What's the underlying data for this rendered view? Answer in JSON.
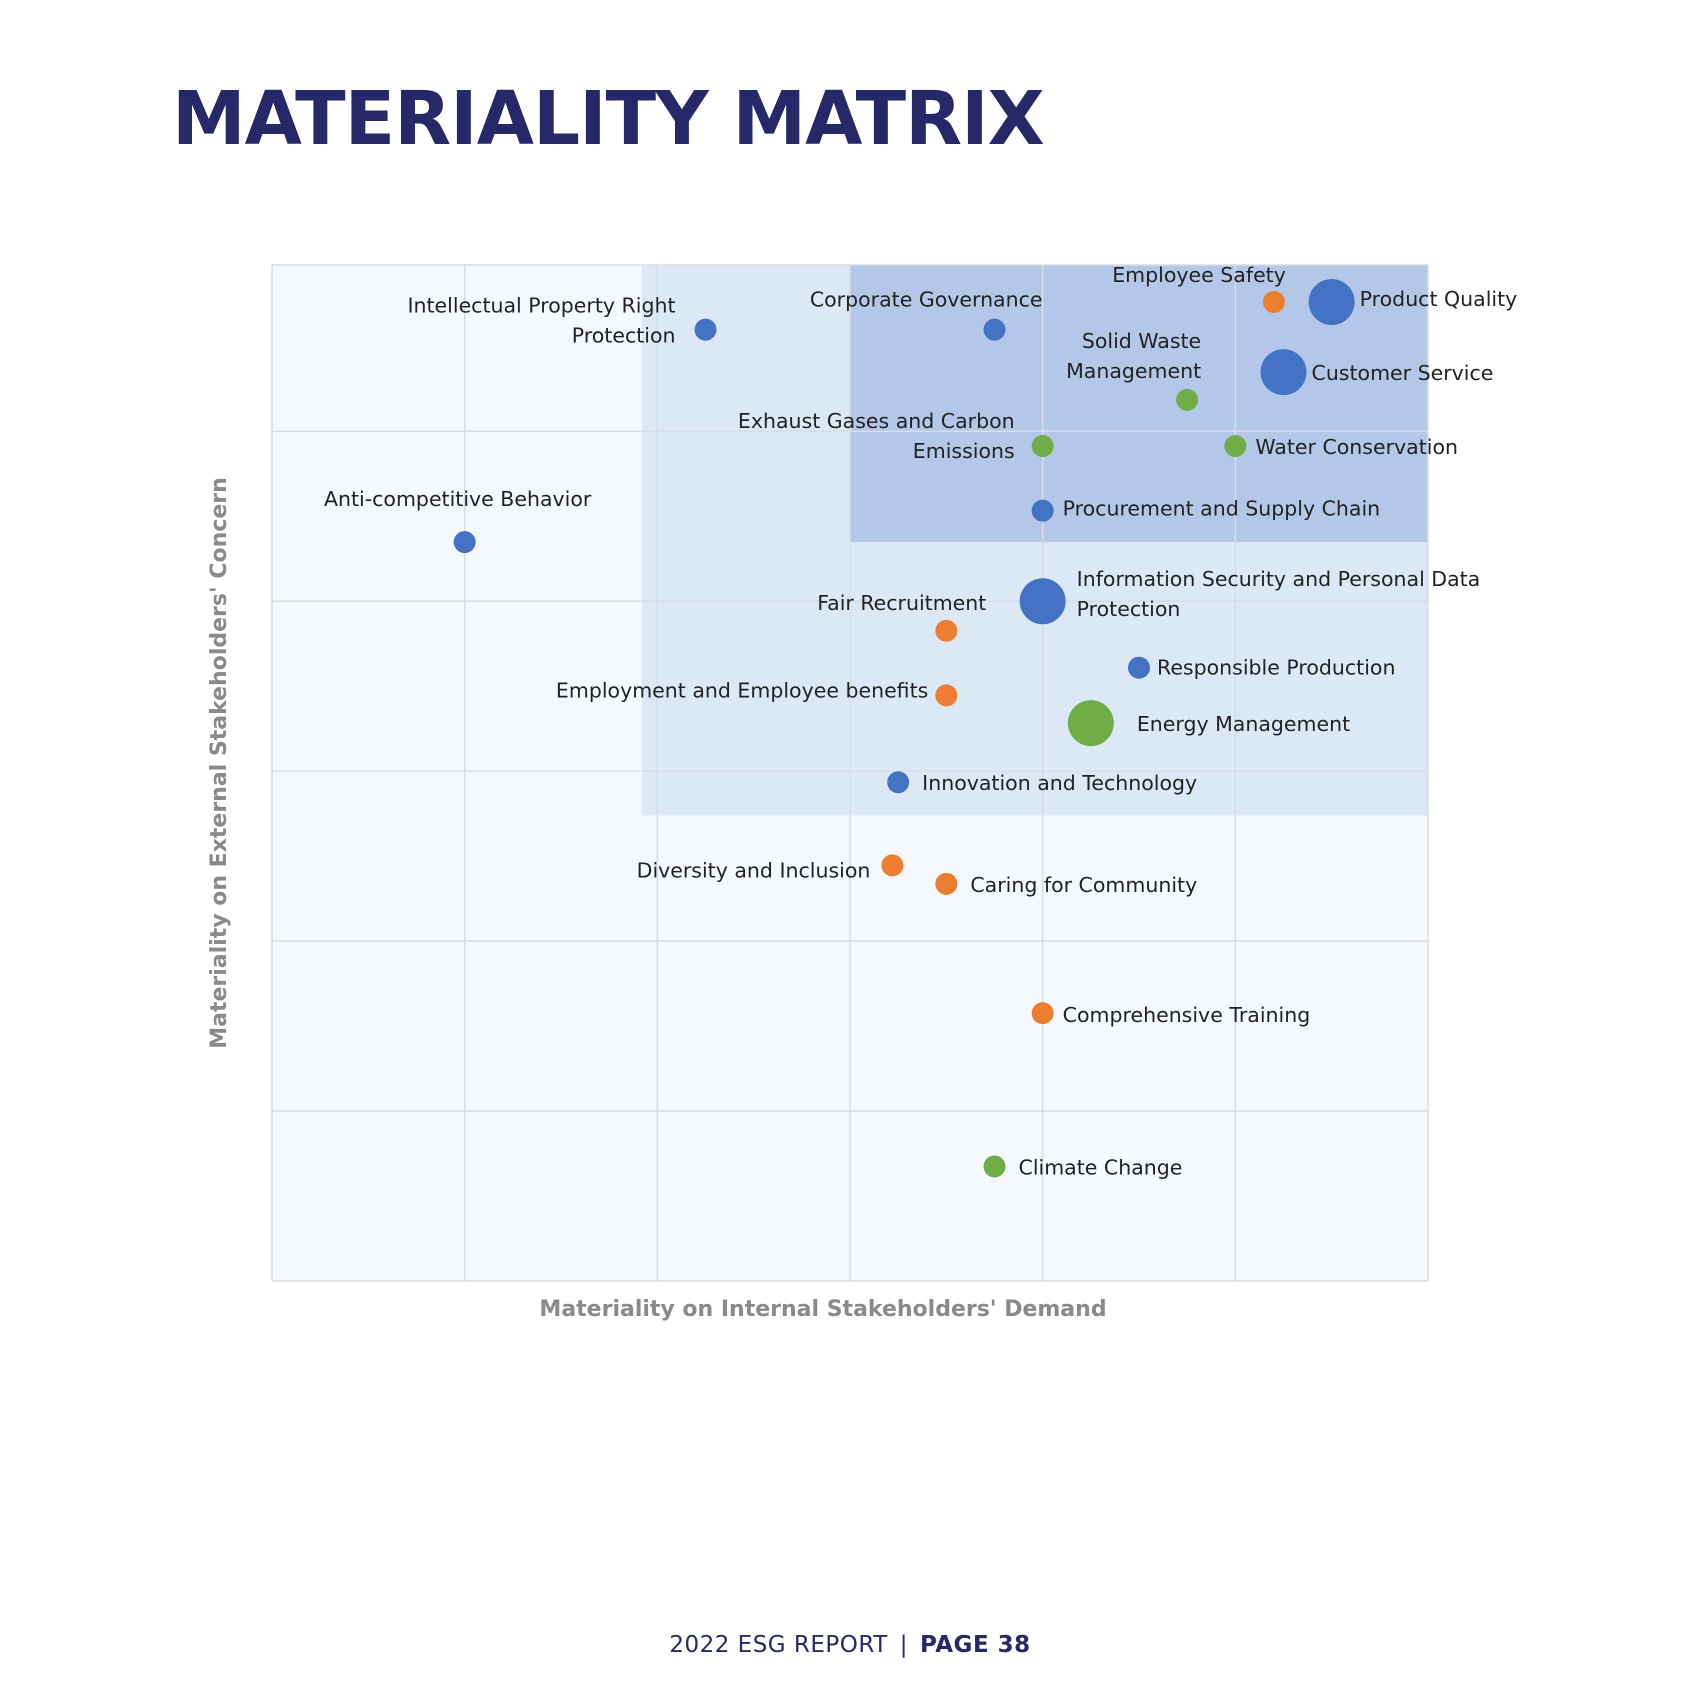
{
  "page": {
    "title": "MATERIALITY MATRIX"
  },
  "footer": {
    "report": "2022 ESG REPORT",
    "separator": "|",
    "page": "PAGE 38"
  },
  "colors": {
    "governance": "#4472c4",
    "social": "#ed7d31",
    "environment": "#70ad47",
    "region_light": "#dce8f6",
    "region_dark": "#b3c8e8",
    "plot_bg": "#f5f8fc",
    "grid": "#d8dde4"
  },
  "chart_data": {
    "type": "scatter",
    "title": "MATERIALITY MATRIX",
    "xlabel": "Materiality on Internal Stakeholders' Demand",
    "ylabel": "Materiality on External Stakeholders' Concern",
    "xlim": [
      0,
      6
    ],
    "ylim": [
      0,
      5.5
    ],
    "grid": true,
    "regions": [
      {
        "name": "moderate",
        "x": [
          1.92,
          6
        ],
        "y": [
          2.52,
          5.5
        ]
      },
      {
        "name": "high",
        "x": [
          3.0,
          6
        ],
        "y": [
          4.0,
          5.5
        ]
      }
    ],
    "points": [
      {
        "label": "Employee Safety",
        "x": 5.2,
        "y": 5.3,
        "size": "small",
        "category": "social"
      },
      {
        "label": "Product Quality",
        "x": 5.5,
        "y": 5.3,
        "size": "large",
        "category": "governance"
      },
      {
        "label": "Corporate Governance",
        "x": 3.75,
        "y": 5.15,
        "size": "small",
        "category": "governance"
      },
      {
        "label": "Intellectual Property Right Protection",
        "x": 2.25,
        "y": 5.15,
        "size": "small",
        "category": "governance"
      },
      {
        "label": "Customer Service",
        "x": 5.25,
        "y": 4.92,
        "size": "large",
        "category": "governance"
      },
      {
        "label": "Solid Waste Management",
        "x": 4.75,
        "y": 4.77,
        "size": "small",
        "category": "environment"
      },
      {
        "label": "Exhaust Gases and Carbon Emissions",
        "x": 4.0,
        "y": 4.52,
        "size": "small",
        "category": "environment"
      },
      {
        "label": "Water Conservation",
        "x": 5.0,
        "y": 4.52,
        "size": "small",
        "category": "environment"
      },
      {
        "label": "Procurement and Supply Chain",
        "x": 4.0,
        "y": 4.17,
        "size": "small",
        "category": "governance"
      },
      {
        "label": "Anti-competitive Behavior",
        "x": 1.0,
        "y": 4.0,
        "size": "small",
        "category": "governance"
      },
      {
        "label": "Information Security and Personal Data Protection",
        "x": 4.0,
        "y": 3.68,
        "size": "large",
        "category": "governance"
      },
      {
        "label": "Fair Recruitment",
        "x": 3.5,
        "y": 3.52,
        "size": "small",
        "category": "social"
      },
      {
        "label": "Responsible Production",
        "x": 4.5,
        "y": 3.32,
        "size": "small",
        "category": "governance"
      },
      {
        "label": "Employment and Employee benefits",
        "x": 3.5,
        "y": 3.17,
        "size": "small",
        "category": "social"
      },
      {
        "label": "Energy Management",
        "x": 4.25,
        "y": 3.02,
        "size": "large",
        "category": "environment"
      },
      {
        "label": "Innovation and Technology",
        "x": 3.25,
        "y": 2.7,
        "size": "small",
        "category": "governance"
      },
      {
        "label": "Diversity and Inclusion",
        "x": 3.22,
        "y": 2.25,
        "size": "small",
        "category": "social"
      },
      {
        "label": "Caring for Community",
        "x": 3.5,
        "y": 2.15,
        "size": "small",
        "category": "social"
      },
      {
        "label": "Comprehensive Training",
        "x": 4.0,
        "y": 1.45,
        "size": "small",
        "category": "social"
      },
      {
        "label": "Climate Change",
        "x": 3.75,
        "y": 0.62,
        "size": "small",
        "category": "environment"
      }
    ]
  }
}
